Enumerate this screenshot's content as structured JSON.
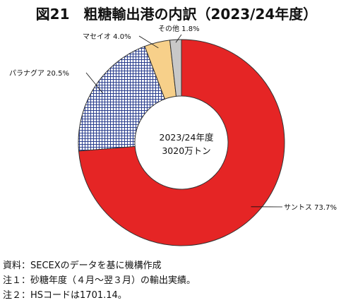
{
  "chart_data": {
    "type": "pie",
    "variant": "donut",
    "title": "図21　粗糖輸出港の内訳（2023/24年度）",
    "center_label": [
      "2023/24年度",
      "3020万トン"
    ],
    "slices": [
      {
        "name": "サントス",
        "value": 73.7,
        "label": "サントス 73.7%",
        "color": "#e52525",
        "pattern": "solid"
      },
      {
        "name": "パラナグア",
        "value": 20.5,
        "label": "パラナグア 20.5%",
        "color": "#2b3f8f",
        "pattern": "grid"
      },
      {
        "name": "マセイオ",
        "value": 4.0,
        "label": "マセイオ 4.0%",
        "color": "#f7d08a",
        "pattern": "solid"
      },
      {
        "name": "その他",
        "value": 1.8,
        "label": "その他 1.8%",
        "color": "#c8c8c8",
        "pattern": "solid"
      }
    ],
    "start": "top",
    "direction": "clockwise",
    "legend": "none"
  },
  "notes": [
    "資料：SECEXのデータを基に機構作成",
    "注１：砂糖年度（４月～翌３月）の輸出実績。",
    "注２：HSコードは1701.14。"
  ]
}
